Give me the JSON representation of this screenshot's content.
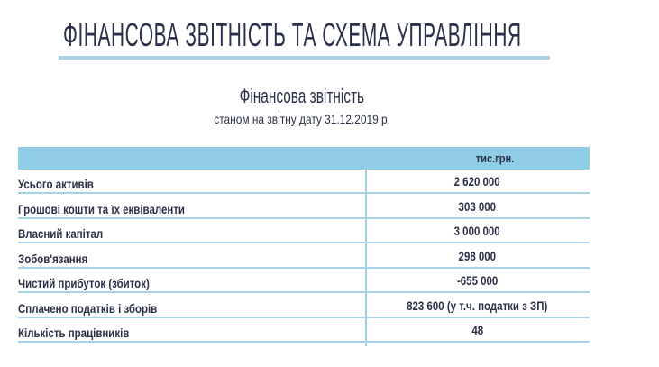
{
  "header": {
    "title": "ФІНАНСОВА ЗВІТНІСТЬ ТА СХЕМА УПРАВЛІННЯ"
  },
  "report": {
    "title": "Фінансова звітність",
    "date_line": "станом на звітну дату 31.12.2019 р.",
    "unit": "тис.грн.",
    "rows": [
      {
        "label": "Усього активів",
        "value": "2 620 000"
      },
      {
        "label": "Грошові кошти та їх еквіваленти",
        "value": "303 000"
      },
      {
        "label": "Власний капітал",
        "value": "3 000 000"
      },
      {
        "label": "Зобов'язання",
        "value": "298 000"
      },
      {
        "label": "Чистий прибуток (збиток)",
        "value": "-655 000"
      },
      {
        "label": "Сплачено податків і зборів",
        "value": "823 600 (у т.ч. податки з ЗП)"
      },
      {
        "label": "Кількість працівників",
        "value": "48"
      }
    ]
  },
  "colors": {
    "accent": "#8fcde6",
    "text": "#2b3046"
  }
}
